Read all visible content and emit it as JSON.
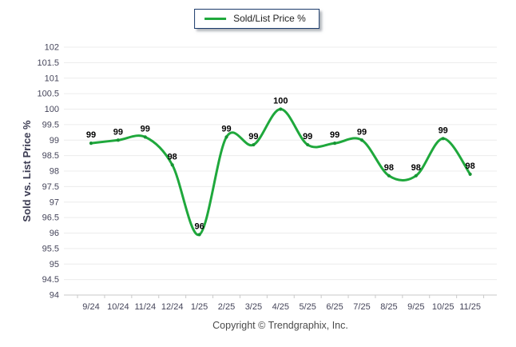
{
  "legend": {
    "label": "Sold/List Price %"
  },
  "colors": {
    "line": "#1FA83C",
    "marker": "#179434",
    "legend_border": "#1B3A6B",
    "grid": "#ECECEC",
    "axis_line": "#C9C9C9",
    "tick_text": "#45455A",
    "axis_title": "#3B3B52",
    "data_label": "#000000",
    "copyright_text": "#4B4B4B"
  },
  "y_axis": {
    "title": "Sold vs. List Price %",
    "min": 94,
    "max": 102,
    "step": 0.5,
    "tick_labels": [
      "94",
      "94.5",
      "95",
      "95.5",
      "96",
      "96.5",
      "97",
      "97.5",
      "98",
      "98.5",
      "99",
      "99.5",
      "100",
      "100.5",
      "101",
      "101.5",
      "102"
    ]
  },
  "x_axis": {
    "labels": [
      "9/24",
      "10/24",
      "11/24",
      "12/24",
      "1/25",
      "2/25",
      "3/25",
      "4/25",
      "5/25",
      "6/25",
      "7/25",
      "8/25",
      "9/25",
      "10/25",
      "11/25"
    ]
  },
  "chart_data": {
    "type": "line",
    "title": "",
    "categories": [
      "9/24",
      "10/24",
      "11/24",
      "12/24",
      "1/25",
      "2/25",
      "3/25",
      "4/25",
      "5/25",
      "6/25",
      "7/25",
      "8/25",
      "9/25",
      "10/25",
      "11/25"
    ],
    "series": [
      {
        "name": "Sold/List Price %",
        "values": [
          99,
          99,
          99,
          98,
          96,
          99,
          99,
          100,
          99,
          99,
          99,
          98,
          98,
          99,
          98
        ],
        "values_precise": [
          98.9,
          99.0,
          99.1,
          98.2,
          95.95,
          99.1,
          98.85,
          100.0,
          98.85,
          98.9,
          99.0,
          97.85,
          97.85,
          99.05,
          97.9
        ],
        "color": "#1FA83C"
      }
    ],
    "data_labels": [
      "99",
      "99",
      "99",
      "98",
      "96",
      "99",
      "99",
      "100",
      "99",
      "99",
      "99",
      "98",
      "98",
      "99",
      "98"
    ],
    "xlabel": "",
    "ylabel": "Sold vs. List Price %",
    "ylim": [
      94,
      102
    ],
    "grid": "horizontal",
    "legend_position": "top-center",
    "line_style": "smooth"
  },
  "footer": {
    "copyright": "Copyright © Trendgraphix, Inc."
  }
}
